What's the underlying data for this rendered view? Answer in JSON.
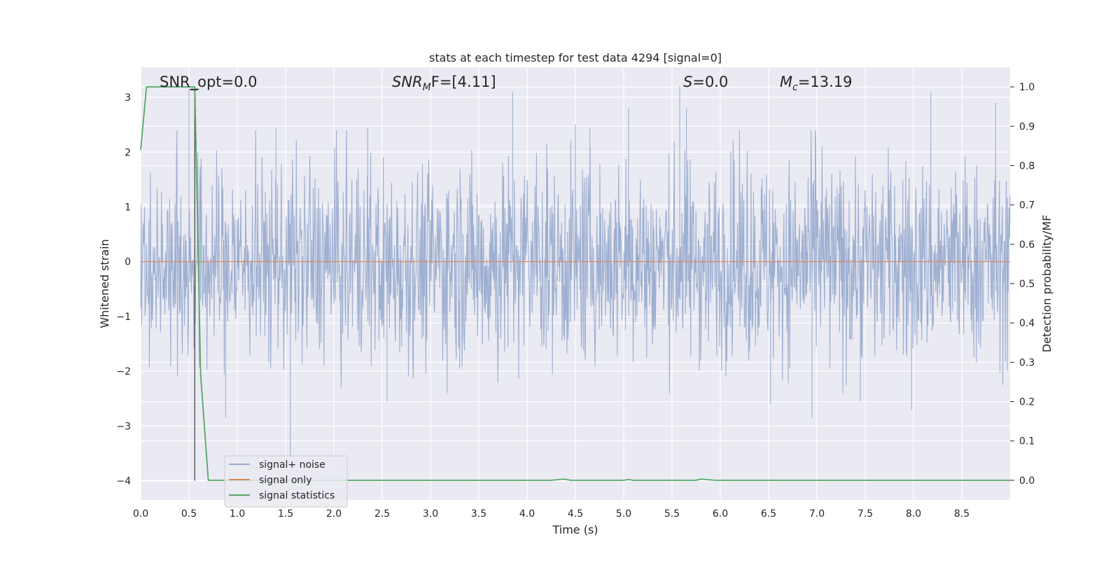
{
  "chart_data": {
    "type": "line",
    "title": "stats at each timestep for test data 4294 [signal=0]",
    "xlabel": "Time (s)",
    "ylabel_left": "Whitened strain",
    "ylabel_right": "Detection probability/MF",
    "xlim": [
      0.0,
      9.0
    ],
    "ylim_left": [
      -4.35,
      3.55
    ],
    "ylim_right": [
      -0.05,
      1.05
    ],
    "x_ticks": [
      "0.0",
      "0.5",
      "1.0",
      "1.5",
      "2.0",
      "2.5",
      "3.0",
      "3.5",
      "4.0",
      "4.5",
      "5.0",
      "5.5",
      "6.0",
      "6.5",
      "7.0",
      "7.5",
      "8.0",
      "8.5"
    ],
    "y_left_ticks": [
      "3",
      "2",
      "1",
      "0",
      "−1",
      "−2",
      "−3",
      "−4"
    ],
    "y_right_ticks": [
      "1.0",
      "0.9",
      "0.8",
      "0.7",
      "0.6",
      "0.5",
      "0.4",
      "0.3",
      "0.2",
      "0.1",
      "0.0"
    ],
    "grid": true,
    "legend_position": "lower-left",
    "annotations": {
      "snr_opt": "SNR_opt=0.0",
      "snr_mf_main": "SNR",
      "snr_mf_sub": "M",
      "snr_mf_rest": "F=[4.11]",
      "s_var": "S",
      "s_rest": "=0.0",
      "mc_main": "M",
      "mc_sub": "c",
      "mc_rest": "=13.19"
    },
    "marker_line": {
      "x": 0.56,
      "y_top": 3.15,
      "y_bottom": -4.0
    },
    "series": [
      {
        "name": "signal+ noise",
        "axis": "left",
        "color": "#9aaccf",
        "kind": "noise",
        "typical_range": [
          -1.0,
          1.0
        ],
        "extreme_peaks": [
          [
            0.5,
            3.2
          ],
          [
            0.56,
            -2.0
          ],
          [
            0.88,
            -2.85
          ],
          [
            1.55,
            -3.55
          ],
          [
            1.4,
            2.45
          ],
          [
            2.55,
            -2.55
          ],
          [
            3.85,
            3.1
          ],
          [
            4.5,
            2.5
          ],
          [
            5.05,
            2.8
          ],
          [
            5.58,
            3.2
          ],
          [
            5.65,
            2.8
          ],
          [
            6.52,
            -2.6
          ],
          [
            6.95,
            -2.85
          ],
          [
            7.45,
            -2.55
          ],
          [
            7.98,
            -2.7
          ],
          [
            8.18,
            3.1
          ],
          [
            8.85,
            2.9
          ],
          [
            2.35,
            2.45
          ],
          [
            4.65,
            2.45
          ]
        ]
      },
      {
        "name": "signal only",
        "axis": "left",
        "color": "#dd8452",
        "x": [
          0.0,
          9.0
        ],
        "y": [
          0.0,
          0.0
        ]
      },
      {
        "name": "signal statistics",
        "axis": "right",
        "color": "#55a868",
        "x": [
          0.0,
          0.06,
          0.1,
          0.56,
          0.62,
          0.7,
          4.25,
          4.38,
          4.45,
          5.0,
          5.05,
          5.1,
          5.75,
          5.8,
          5.95,
          9.0
        ],
        "y": [
          0.84,
          1.0,
          1.0,
          1.0,
          0.27,
          0.0,
          0.0,
          0.003,
          0.0,
          0.0,
          0.002,
          0.0,
          0.0,
          0.003,
          0.0,
          0.0
        ]
      }
    ]
  }
}
